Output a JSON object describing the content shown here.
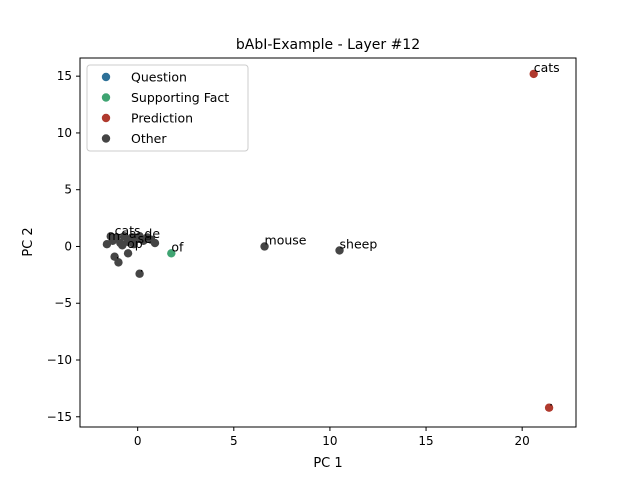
{
  "chart_data": {
    "type": "scatter",
    "title": "bAbI-Example - Layer #12",
    "xlabel": "PC 1",
    "ylabel": "PC 2",
    "xlim": [
      -3.0,
      22.8
    ],
    "ylim": [
      -15.9,
      16.6
    ],
    "xticks": [
      0,
      5,
      10,
      15,
      20
    ],
    "yticks": [
      15,
      10,
      5,
      0,
      -5,
      -10,
      -15
    ],
    "grid": false,
    "legend_position": "top-left",
    "colors": {
      "question": "#2e7198",
      "supporting": "#3fa472",
      "prediction": "#b03a2e",
      "other": "#454545"
    },
    "series": [
      {
        "name": "Question",
        "color": "#2e7198",
        "points": []
      },
      {
        "name": "Supporting Fact",
        "color": "#3fa472",
        "points": [
          {
            "x": 1.75,
            "y": -0.6,
            "label": "of"
          }
        ]
      },
      {
        "name": "Prediction",
        "color": "#b03a2e",
        "points": [
          {
            "x": 20.6,
            "y": 15.2,
            "label": "cats"
          },
          {
            "x": 21.4,
            "y": -14.2,
            "label": "."
          }
        ]
      },
      {
        "name": "Other",
        "color": "#454545",
        "points": [
          {
            "x": 6.6,
            "y": 0.0,
            "label": "mouse"
          },
          {
            "x": 10.5,
            "y": -0.35,
            "label": "sheep"
          },
          {
            "x": 0.1,
            "y": -2.4,
            "label": "."
          },
          {
            "x": -1.0,
            "y": -1.4,
            "label": ""
          },
          {
            "x": -1.2,
            "y": -0.9,
            "label": ""
          },
          {
            "x": -0.5,
            "y": -0.6,
            "label": ""
          },
          {
            "x": -1.6,
            "y": 0.2,
            "label": ""
          },
          {
            "x": -1.3,
            "y": 0.5,
            "label": ""
          },
          {
            "x": -1.1,
            "y": 0.8,
            "label": ""
          },
          {
            "x": -0.9,
            "y": 0.3,
            "label": ""
          },
          {
            "x": -0.7,
            "y": 0.9,
            "label": ""
          },
          {
            "x": -0.5,
            "y": 0.4,
            "label": ""
          },
          {
            "x": -0.3,
            "y": 0.8,
            "label": ""
          },
          {
            "x": -0.1,
            "y": 0.6,
            "label": ""
          },
          {
            "x": 0.1,
            "y": 0.9,
            "label": ""
          },
          {
            "x": 0.3,
            "y": 0.5,
            "label": ""
          },
          {
            "x": 0.5,
            "y": 0.8,
            "label": ""
          },
          {
            "x": 0.7,
            "y": 0.6,
            "label": ""
          },
          {
            "x": 0.9,
            "y": 0.3,
            "label": ""
          },
          {
            "x": -1.4,
            "y": 0.9,
            "label": ""
          },
          {
            "x": -0.8,
            "y": 0.1,
            "label": ""
          },
          {
            "x": -0.2,
            "y": 0.2,
            "label": ""
          }
        ]
      }
    ],
    "cluster_labels": [
      {
        "x": -1.55,
        "y": 0.55,
        "text": "m"
      },
      {
        "x": -1.2,
        "y": 1.0,
        "text": "cats"
      },
      {
        "x": -0.45,
        "y": 0.75,
        "text": "a"
      },
      {
        "x": 0.35,
        "y": 0.75,
        "text": "de"
      },
      {
        "x": 0.0,
        "y": 0.3,
        "text": "se"
      },
      {
        "x": -0.55,
        "y": -0.15,
        "text": "op"
      },
      {
        "x": -1.15,
        "y": -1.05,
        "text": "."
      }
    ]
  }
}
